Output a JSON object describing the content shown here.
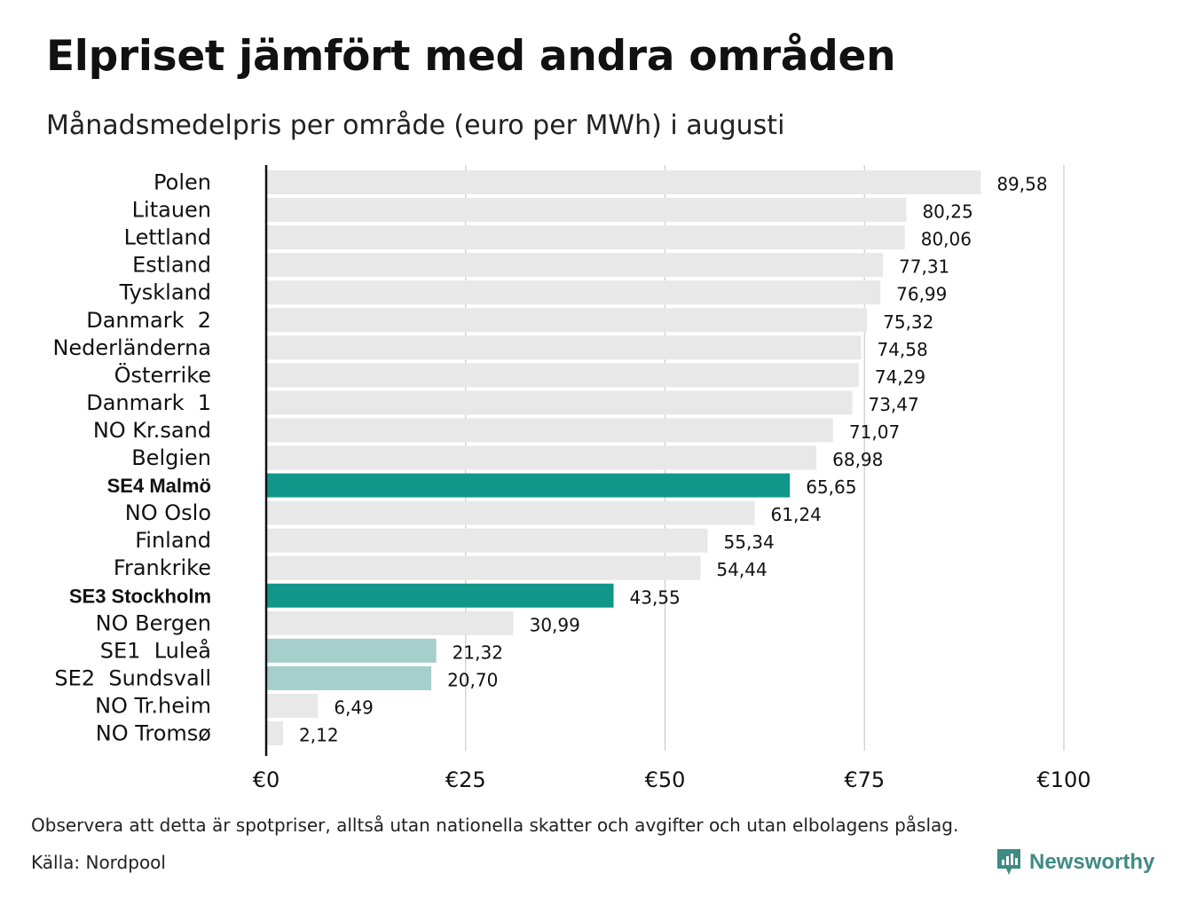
{
  "title": "Elpriset jämfört med andra områden",
  "subtitle": "Månadsmedelpris per område (euro per MWh) i augusti",
  "note": "Observera att detta är spotpriser, alltså utan nationella skatter och avgifter och utan elbolagens påslag.",
  "source": "Källa: Nordpool",
  "brand": {
    "name": "Newsworthy",
    "icon": "newsworthy-logo-icon"
  },
  "colors": {
    "default_bar": "#e8e8e8",
    "highlight_bar": "#11968a",
    "light_highlight_bar": "#a6cfcb",
    "grid": "#c9c9d1",
    "axis": "#111111",
    "brand": "#3f8a84"
  },
  "chart_data": {
    "type": "bar",
    "orientation": "horizontal",
    "categories": [
      "Polen",
      "Litauen",
      "Lettland",
      "Estland",
      "Tyskland",
      "Danmark  2",
      "Nederländerna",
      "Österrike",
      "Danmark  1",
      "NO Kr.sand",
      "Belgien",
      "SE4 Malmö",
      "NO Oslo",
      "Finland",
      "Frankrike",
      "SE3 Stockholm",
      "NO Bergen",
      "SE1  Luleå",
      "SE2  Sundsvall",
      "NO Tr.heim",
      "NO Tromsø"
    ],
    "values": [
      89.58,
      80.25,
      80.06,
      77.31,
      76.99,
      75.32,
      74.58,
      74.29,
      73.47,
      71.07,
      68.98,
      65.65,
      61.24,
      55.34,
      54.44,
      43.55,
      30.99,
      21.32,
      20.7,
      6.49,
      2.12
    ],
    "value_labels": [
      "89,58",
      "80,25",
      "80,06",
      "77,31",
      "76,99",
      "75,32",
      "74,58",
      "74,29",
      "73,47",
      "71,07",
      "68,98",
      "65,65",
      "61,24",
      "55,34",
      "54,44",
      "43,55",
      "30,99",
      "21,32",
      "20,70",
      "6,49",
      "2,12"
    ],
    "highlight": [
      "SE4 Malmö",
      "SE3 Stockholm"
    ],
    "light_highlight": [
      "SE1  Luleå",
      "SE2  Sundsvall"
    ],
    "x_ticks": [
      0,
      25,
      50,
      75,
      100
    ],
    "x_tick_labels": [
      "€0",
      "€25",
      "€50",
      "€75",
      "€100"
    ],
    "xlim": [
      0,
      100
    ],
    "grid": true
  }
}
